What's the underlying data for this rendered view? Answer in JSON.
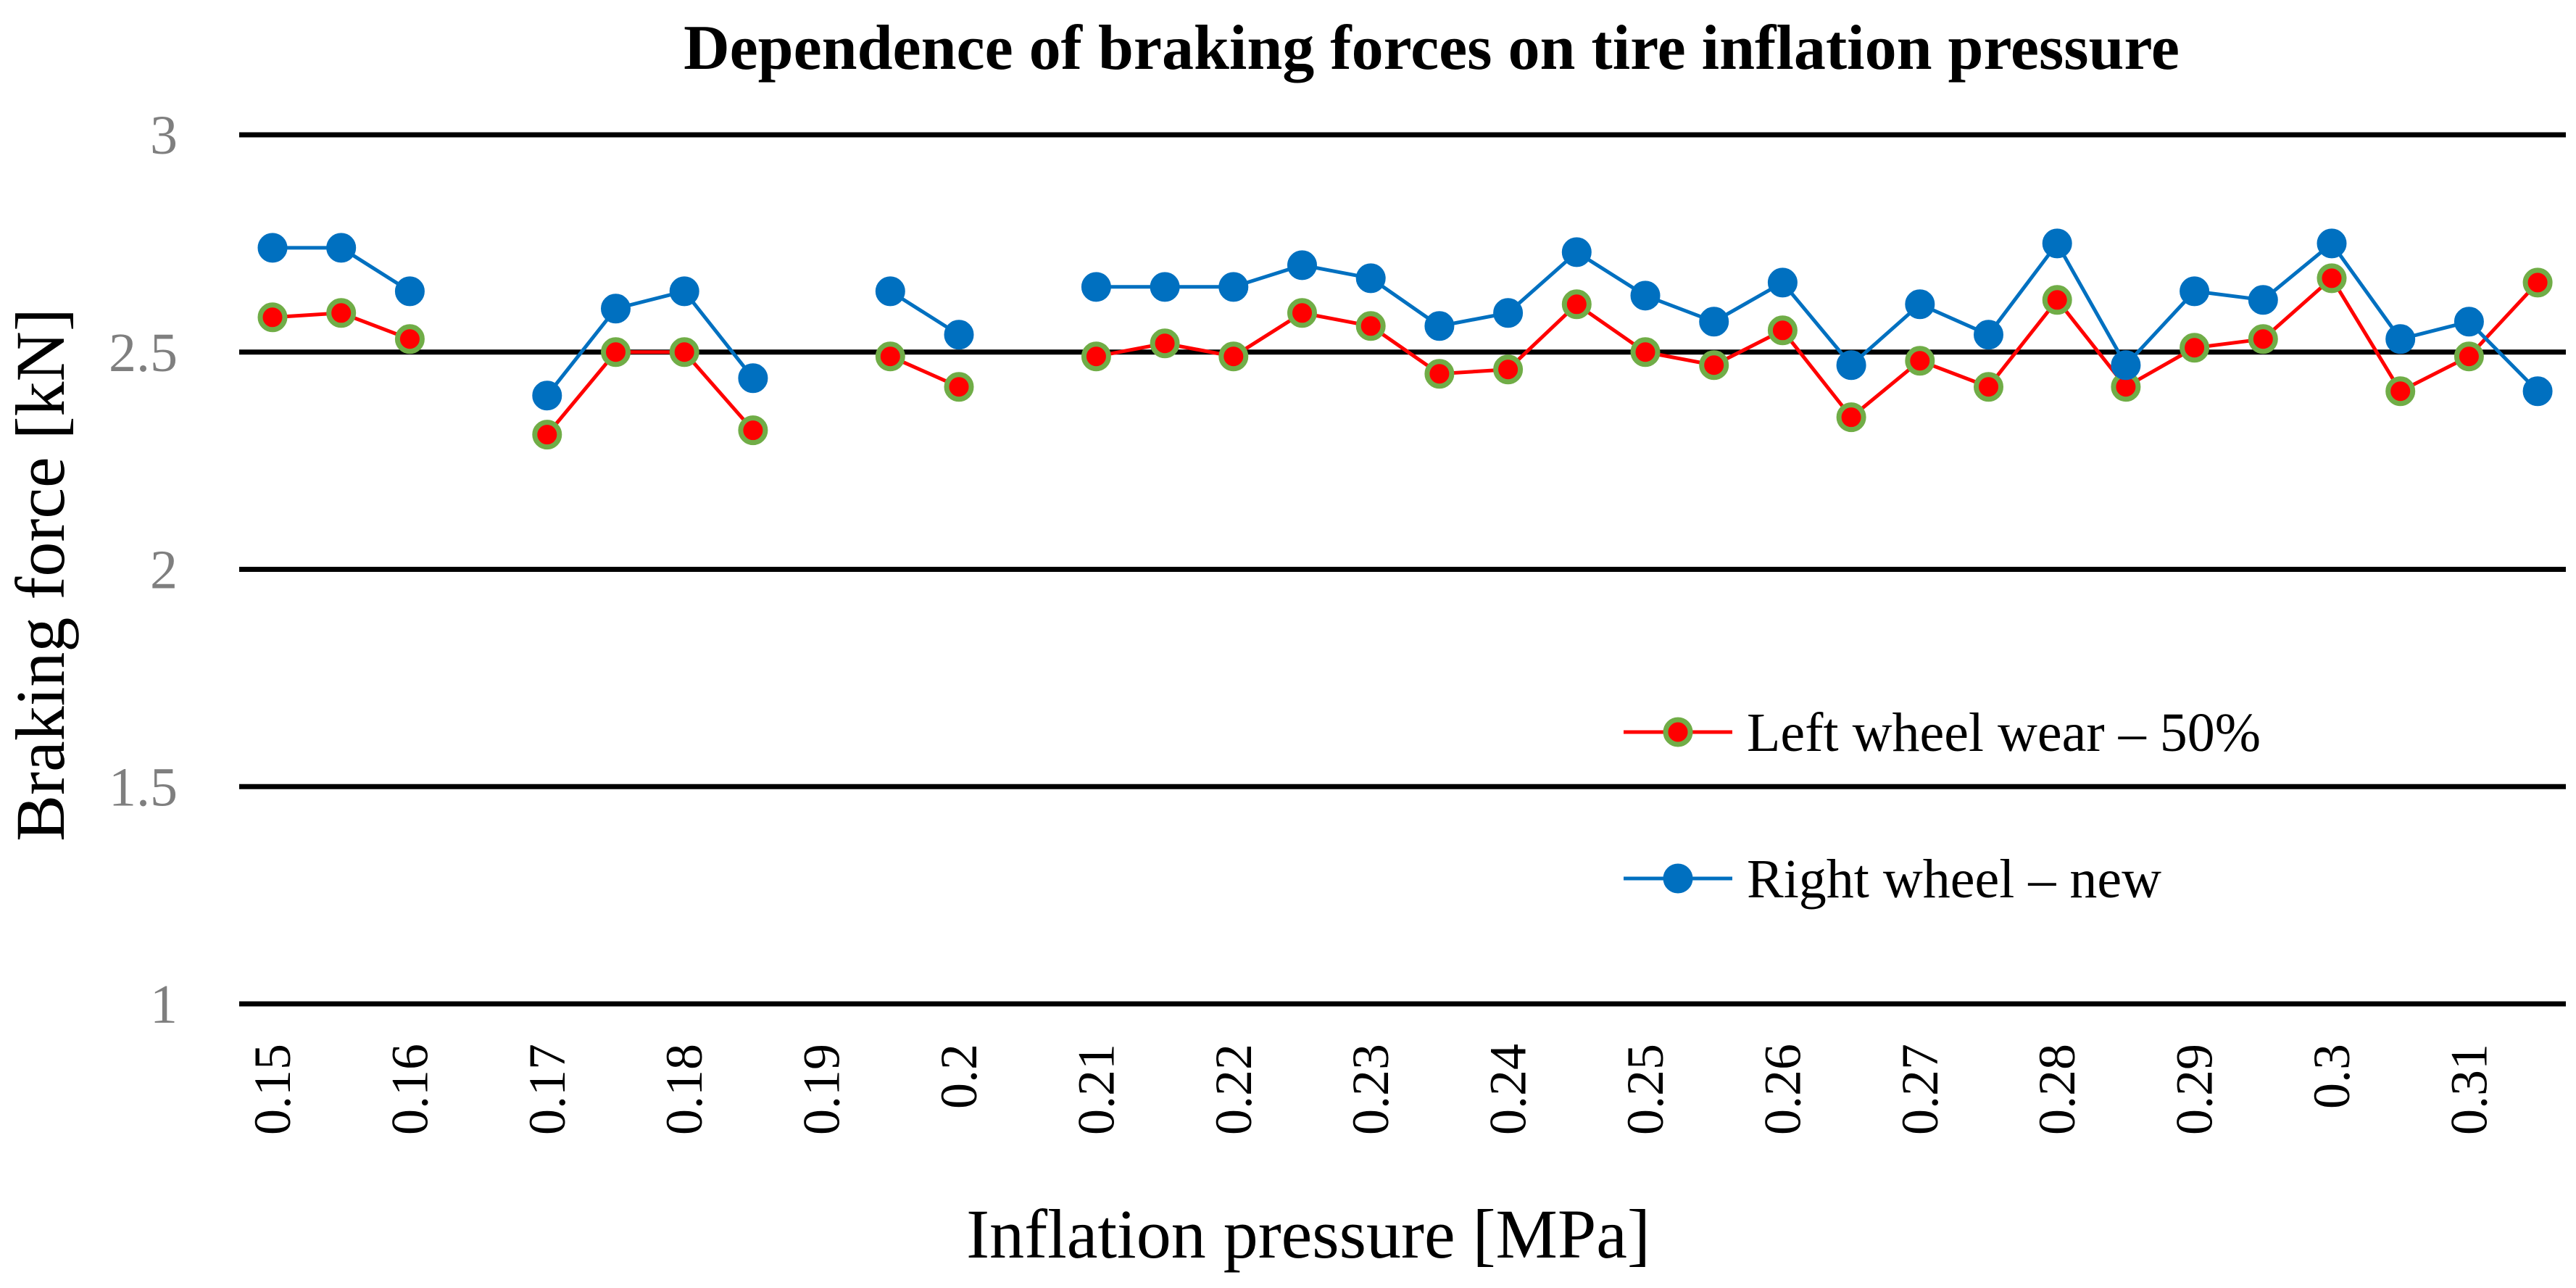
{
  "chart_data": {
    "type": "line",
    "title": "Dependence of braking forces on tire inflation pressure",
    "xlabel": "Inflation pressure [MPa]",
    "ylabel": "Braking force [kN]",
    "ylim": [
      1,
      3
    ],
    "yticks": [
      "1",
      "1.5",
      "2",
      "2.5",
      "3"
    ],
    "grid": true,
    "legend_position": "right-middle",
    "categories": [
      "0.15",
      "0.155",
      "0.16",
      "0.165",
      "0.17",
      "0.175",
      "0.18",
      "0.185",
      "0.19",
      "0.195",
      "0.2",
      "0.205",
      "0.21",
      "0.215",
      "0.22",
      "0.225",
      "0.23",
      "0.235",
      "0.24",
      "0.245",
      "0.25",
      "0.255",
      "0.26",
      "0.265",
      "0.27",
      "0.275",
      "0.28",
      "0.285",
      "0.29",
      "0.295",
      "0.3",
      "0.305",
      "0.31",
      "0.315"
    ],
    "xtick_labels": [
      "0.15",
      "",
      "0.16",
      "",
      "0.17",
      "",
      "0.18",
      "",
      "0.19",
      "",
      "0.2",
      "",
      "0.21",
      "",
      "0.22",
      "",
      "0.23",
      "",
      "0.24",
      "",
      "0.25",
      "",
      "0.26",
      "",
      "0.27",
      "",
      "0.28",
      "",
      "0.29",
      "",
      "0.3",
      "",
      "0.31",
      ""
    ],
    "series": [
      {
        "name": "Left wheel wear – 50%",
        "line_color": "#ff0000",
        "marker_fill": "#ff0000",
        "marker_edge": "#70ad47",
        "values": [
          2.58,
          2.59,
          2.53,
          null,
          2.31,
          2.5,
          2.5,
          2.32,
          null,
          2.49,
          2.42,
          null,
          2.49,
          2.52,
          2.49,
          2.59,
          2.56,
          2.45,
          2.46,
          2.61,
          2.5,
          2.47,
          2.55,
          2.35,
          2.48,
          2.42,
          2.62,
          2.42,
          2.51,
          2.53,
          2.67,
          2.41,
          2.49,
          2.66
        ]
      },
      {
        "name": "Right wheel – new",
        "line_color": "#0070c0",
        "marker_fill": "#0070c0",
        "marker_edge": "#0070c0",
        "values": [
          2.74,
          2.74,
          2.64,
          null,
          2.4,
          2.6,
          2.64,
          2.44,
          null,
          2.64,
          2.54,
          null,
          2.65,
          2.65,
          2.65,
          2.7,
          2.67,
          2.56,
          2.59,
          2.73,
          2.63,
          2.57,
          2.66,
          2.47,
          2.61,
          2.54,
          2.75,
          2.47,
          2.64,
          2.62,
          2.75,
          2.53,
          2.57,
          2.41
        ]
      }
    ]
  }
}
